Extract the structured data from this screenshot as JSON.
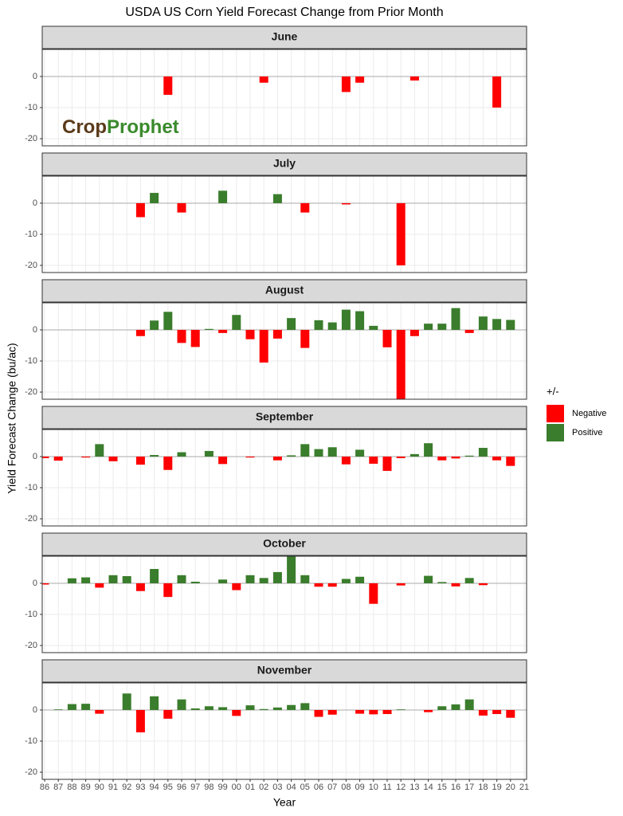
{
  "chart_data": {
    "type": "bar",
    "title": "USDA US Corn Yield Forecast Change from Prior Month",
    "x_label": "Year",
    "y_label": "Yield Forecast Change (bu/ac)",
    "watermark": [
      "Crop",
      "Prophet"
    ],
    "categories": [
      "86",
      "87",
      "88",
      "89",
      "90",
      "91",
      "92",
      "93",
      "94",
      "95",
      "96",
      "97",
      "98",
      "99",
      "00",
      "01",
      "02",
      "03",
      "04",
      "05",
      "06",
      "07",
      "08",
      "09",
      "10",
      "11",
      "12",
      "13",
      "14",
      "15",
      "16",
      "17",
      "18",
      "19",
      "20",
      "21"
    ],
    "ylim": [
      -22.3,
      8.7
    ],
    "yticks": [
      -20,
      -10,
      0
    ],
    "grid": true,
    "legend": {
      "title": "+/-",
      "entries": [
        {
          "name": "Negative",
          "color": "#ff0000"
        },
        {
          "name": "Positive",
          "color": "#3a7d2c"
        }
      ]
    },
    "facets": [
      {
        "title": "June",
        "values": [
          null,
          null,
          null,
          null,
          null,
          null,
          null,
          null,
          null,
          -5.9,
          null,
          null,
          null,
          null,
          null,
          null,
          -2,
          null,
          null,
          null,
          null,
          null,
          -5,
          -2,
          null,
          null,
          null,
          -1.3,
          null,
          null,
          null,
          null,
          null,
          -10,
          null,
          null
        ]
      },
      {
        "title": "July",
        "values": [
          null,
          null,
          null,
          null,
          null,
          null,
          null,
          -4.5,
          3.3,
          null,
          -3,
          null,
          null,
          4,
          null,
          null,
          null,
          2.9,
          null,
          -3,
          null,
          null,
          -0.4,
          null,
          null,
          null,
          -20,
          null,
          null,
          null,
          null,
          null,
          null,
          null,
          null,
          null
        ]
      },
      {
        "title": "August",
        "values": [
          null,
          null,
          null,
          null,
          null,
          null,
          null,
          -2,
          3,
          5.8,
          -4.2,
          -5.5,
          0.3,
          -1,
          4.8,
          -3,
          -10.5,
          -2.8,
          3.8,
          -5.8,
          3.1,
          2.4,
          6.5,
          6,
          1.3,
          -5.6,
          -23,
          -2,
          2,
          2,
          7,
          -1,
          4.3,
          3.5,
          3.2,
          null
        ]
      },
      {
        "title": "September",
        "values": [
          -0.5,
          -1.3,
          null,
          -0.3,
          4,
          -1.5,
          null,
          -2.6,
          0.5,
          -4.3,
          1.4,
          null,
          1.8,
          -2.4,
          null,
          -0.3,
          null,
          -1.2,
          0.4,
          4,
          2.4,
          3,
          -2.5,
          2.2,
          -2.3,
          -4.6,
          -0.5,
          0.8,
          4.3,
          -1.2,
          -0.6,
          0.3,
          2.8,
          -1.2,
          -3,
          null
        ]
      },
      {
        "title": "October",
        "values": [
          -0.4,
          null,
          1.6,
          1.9,
          -1.4,
          2.6,
          2.3,
          -2.5,
          4.6,
          -4.4,
          2.6,
          0.5,
          null,
          1.2,
          -2.2,
          2.6,
          1.7,
          3.6,
          9,
          2.6,
          -1.1,
          -1.1,
          1.4,
          2.1,
          -6.6,
          null,
          -0.7,
          null,
          2.4,
          0.4,
          -1,
          1.7,
          -0.6,
          null,
          null,
          null
        ]
      },
      {
        "title": "November",
        "values": [
          null,
          0.2,
          1.9,
          2,
          -1.2,
          null,
          5.3,
          -7.2,
          4.4,
          -2.8,
          3.4,
          0.5,
          1.2,
          0.9,
          -1.9,
          1.5,
          0.3,
          0.8,
          1.6,
          2.2,
          -2.2,
          -1.5,
          null,
          -1.2,
          -1.4,
          -1.3,
          0.2,
          null,
          -0.7,
          1.2,
          1.8,
          3.4,
          -1.8,
          -1.3,
          -2.5,
          null
        ]
      }
    ]
  }
}
